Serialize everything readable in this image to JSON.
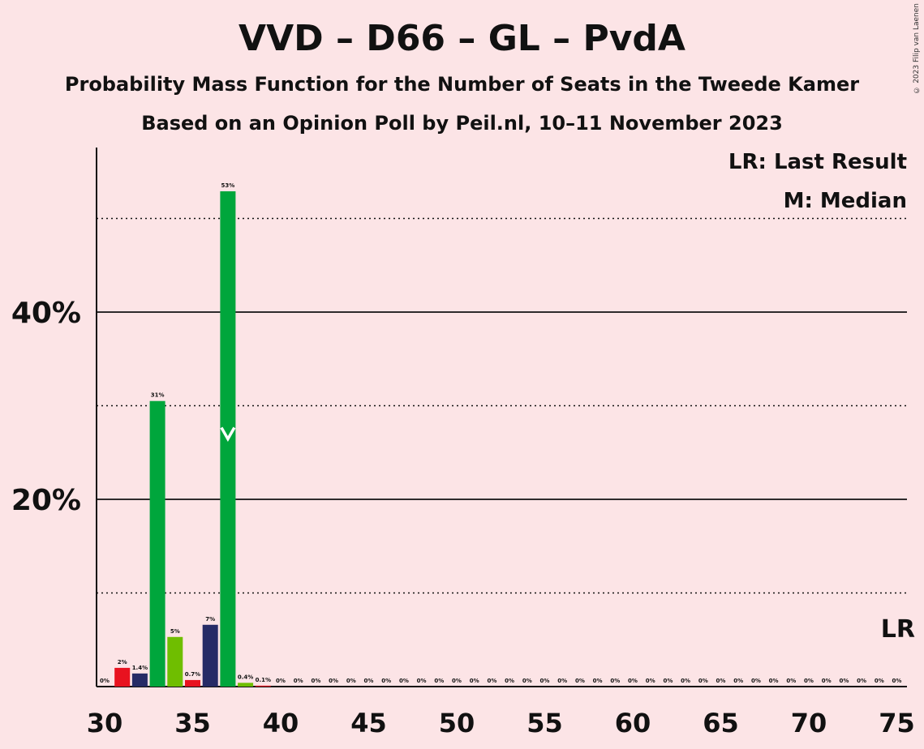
{
  "chart_data": {
    "type": "bar",
    "title": "VVD – D66 – GL – PvdA",
    "subtitle1": "Probability Mass Function for the Number of Seats in the Tweede Kamer",
    "subtitle2": "Based on an Opinion Poll by Peil.nl, 10–11 November 2023",
    "copyright": "© 2023 Filip van Laenen",
    "legend_lr": "LR: Last Result",
    "legend_m": "M: Median",
    "lr_marker": "LR",
    "median_seat": 37,
    "last_result_seat": 75,
    "ylim": [
      0,
      57
    ],
    "y_ticks": [
      20,
      40
    ],
    "y_tick_labels": [
      "20%",
      "40%"
    ],
    "x_ticks": [
      30,
      35,
      40,
      45,
      50,
      55,
      60,
      65,
      70,
      75
    ],
    "bars": [
      {
        "seat": 30,
        "value": 0,
        "label": "0%",
        "color": "#e8121f"
      },
      {
        "seat": 31,
        "value": 2,
        "label": "2%",
        "color": "#e8121f"
      },
      {
        "seat": 32,
        "value": 1.4,
        "label": "1.4%",
        "color": "#262b66"
      },
      {
        "seat": 33,
        "value": 30.5,
        "label": "31%",
        "color": "#00a63c"
      },
      {
        "seat": 34,
        "value": 5.3,
        "label": "5%",
        "color": "#6fbe00"
      },
      {
        "seat": 35,
        "value": 0.7,
        "label": "0.7%",
        "color": "#e8121f"
      },
      {
        "seat": 36,
        "value": 6.6,
        "label": "7%",
        "color": "#262b66"
      },
      {
        "seat": 37,
        "value": 52.9,
        "label": "53%",
        "color": "#00a63c"
      },
      {
        "seat": 38,
        "value": 0.4,
        "label": "0.4%",
        "color": "#6fbe00"
      },
      {
        "seat": 39,
        "value": 0.1,
        "label": "0.1%",
        "color": "#e8121f"
      },
      {
        "seat": 40,
        "value": 0,
        "label": "0%",
        "color": "#262b66"
      },
      {
        "seat": 41,
        "value": 0,
        "label": "0%",
        "color": "#00a63c"
      },
      {
        "seat": 42,
        "value": 0,
        "label": "0%",
        "color": "#6fbe00"
      },
      {
        "seat": 43,
        "value": 0,
        "label": "0%",
        "color": "#e8121f"
      },
      {
        "seat": 44,
        "value": 0,
        "label": "0%",
        "color": "#262b66"
      },
      {
        "seat": 45,
        "value": 0,
        "label": "0%",
        "color": "#00a63c"
      },
      {
        "seat": 46,
        "value": 0,
        "label": "0%",
        "color": "#6fbe00"
      },
      {
        "seat": 47,
        "value": 0,
        "label": "0%",
        "color": "#e8121f"
      },
      {
        "seat": 48,
        "value": 0,
        "label": "0%",
        "color": "#262b66"
      },
      {
        "seat": 49,
        "value": 0,
        "label": "0%",
        "color": "#00a63c"
      },
      {
        "seat": 50,
        "value": 0,
        "label": "0%",
        "color": "#6fbe00"
      },
      {
        "seat": 51,
        "value": 0,
        "label": "0%",
        "color": "#e8121f"
      },
      {
        "seat": 52,
        "value": 0,
        "label": "0%",
        "color": "#262b66"
      },
      {
        "seat": 53,
        "value": 0,
        "label": "0%",
        "color": "#00a63c"
      },
      {
        "seat": 54,
        "value": 0,
        "label": "0%",
        "color": "#6fbe00"
      },
      {
        "seat": 55,
        "value": 0,
        "label": "0%",
        "color": "#e8121f"
      },
      {
        "seat": 56,
        "value": 0,
        "label": "0%",
        "color": "#262b66"
      },
      {
        "seat": 57,
        "value": 0,
        "label": "0%",
        "color": "#00a63c"
      },
      {
        "seat": 58,
        "value": 0,
        "label": "0%",
        "color": "#6fbe00"
      },
      {
        "seat": 59,
        "value": 0,
        "label": "0%",
        "color": "#e8121f"
      },
      {
        "seat": 60,
        "value": 0,
        "label": "0%",
        "color": "#262b66"
      },
      {
        "seat": 61,
        "value": 0,
        "label": "0%",
        "color": "#00a63c"
      },
      {
        "seat": 62,
        "value": 0,
        "label": "0%",
        "color": "#6fbe00"
      },
      {
        "seat": 63,
        "value": 0,
        "label": "0%",
        "color": "#e8121f"
      },
      {
        "seat": 64,
        "value": 0,
        "label": "0%",
        "color": "#262b66"
      },
      {
        "seat": 65,
        "value": 0,
        "label": "0%",
        "color": "#00a63c"
      },
      {
        "seat": 66,
        "value": 0,
        "label": "0%",
        "color": "#6fbe00"
      },
      {
        "seat": 67,
        "value": 0,
        "label": "0%",
        "color": "#e8121f"
      },
      {
        "seat": 68,
        "value": 0,
        "label": "0%",
        "color": "#262b66"
      },
      {
        "seat": 69,
        "value": 0,
        "label": "0%",
        "color": "#00a63c"
      },
      {
        "seat": 70,
        "value": 0,
        "label": "0%",
        "color": "#6fbe00"
      },
      {
        "seat": 71,
        "value": 0,
        "label": "0%",
        "color": "#e8121f"
      },
      {
        "seat": 72,
        "value": 0,
        "label": "0%",
        "color": "#262b66"
      },
      {
        "seat": 73,
        "value": 0,
        "label": "0%",
        "color": "#00a63c"
      },
      {
        "seat": 74,
        "value": 0,
        "label": "0%",
        "color": "#6fbe00"
      },
      {
        "seat": 75,
        "value": 0,
        "label": "0%",
        "color": "#e8121f"
      }
    ]
  }
}
